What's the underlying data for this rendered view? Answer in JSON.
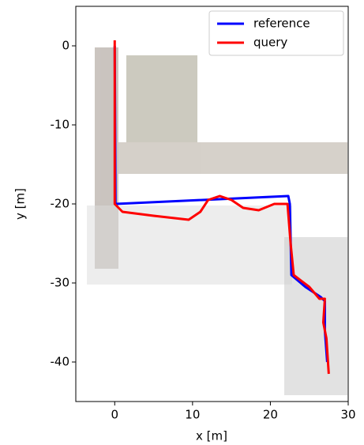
{
  "chart_data": {
    "type": "line",
    "xlabel": "x [m]",
    "ylabel": "y [m]",
    "xlim": [
      -5,
      30
    ],
    "ylim": [
      -45,
      5
    ],
    "xticks": [
      0,
      10,
      20,
      30
    ],
    "yticks": [
      0,
      -10,
      -20,
      -30,
      -40
    ],
    "legend": "upper right",
    "series": [
      {
        "name": "reference",
        "color": "#0000ff",
        "x": [
          0,
          0.1,
          22.3,
          22.5,
          22.7,
          24.5,
          26.5,
          27,
          27,
          27.3
        ],
        "values": [
          0,
          -20,
          -19,
          -20,
          -29,
          -30.5,
          -31.8,
          -32.3,
          -36,
          -40
        ]
      },
      {
        "name": "query",
        "color": "#ff0000",
        "x": [
          0,
          0,
          0,
          1,
          5,
          9.5,
          11,
          12,
          13.5,
          15,
          16.5,
          18.5,
          20.5,
          22.2,
          22.6,
          23,
          25,
          26.3,
          27,
          26.8,
          27.2,
          27.5
        ],
        "values": [
          0.7,
          -5,
          -20,
          -21,
          -21.5,
          -22,
          -21,
          -19.5,
          -19,
          -19.5,
          -20.5,
          -20.8,
          -20,
          -20,
          -25,
          -29,
          -30.5,
          -32,
          -32,
          -35,
          -37,
          -41.5
        ]
      }
    ]
  }
}
